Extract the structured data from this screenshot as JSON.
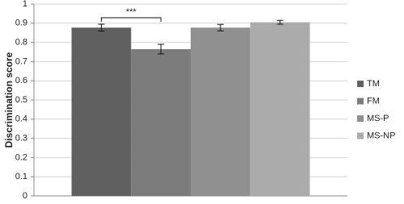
{
  "chart_data": {
    "type": "bar",
    "y_label": "Discrimination score",
    "categories": [
      null
    ],
    "series": [
      {
        "name": "TM",
        "color": "#606060",
        "values": [
          0.877
        ],
        "errors": [
          0.018
        ]
      },
      {
        "name": "FM",
        "color": "#7c7c7c",
        "values": [
          0.765
        ],
        "errors": [
          0.025
        ]
      },
      {
        "name": "MS-P",
        "color": "#909090",
        "values": [
          0.877
        ],
        "errors": [
          0.017
        ]
      },
      {
        "name": "MS-NP",
        "color": "#ababab",
        "values": [
          0.905
        ],
        "errors": [
          0.01
        ]
      }
    ],
    "annotation": "***",
    "ylim": [
      0,
      1
    ],
    "yticks": [
      0,
      0.1,
      0.2,
      0.3,
      0.4,
      0.5,
      0.6,
      0.7,
      0.8,
      0.9,
      1
    ],
    "grid": true,
    "legend": "right"
  }
}
